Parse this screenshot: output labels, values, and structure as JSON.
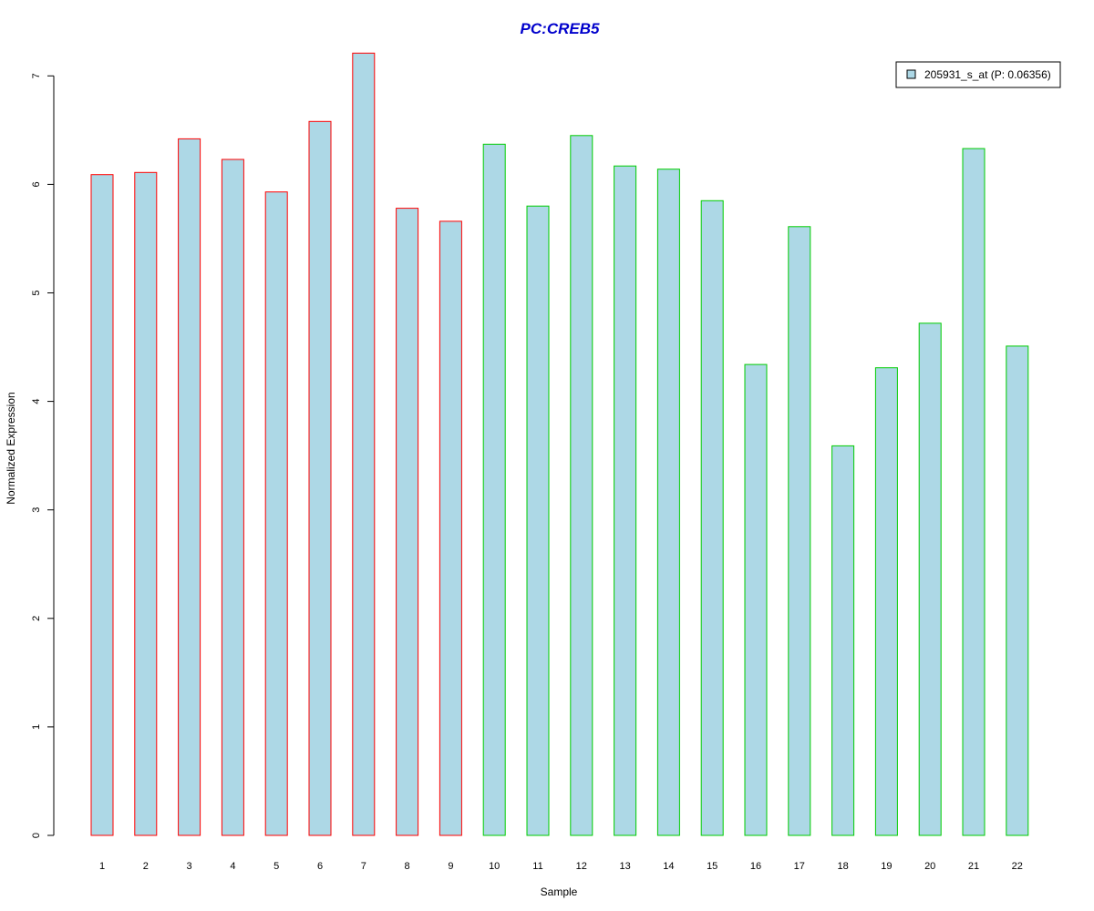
{
  "chart_data": {
    "type": "bar",
    "title": "PC:CREB5",
    "xlabel": "Sample",
    "ylabel": "Normalized Expression",
    "ylim": [
      0,
      7.2
    ],
    "yticks": [
      0,
      1,
      2,
      3,
      4,
      5,
      6,
      7
    ],
    "grid": false,
    "legend_position": "top-right",
    "categories": [
      "1",
      "2",
      "3",
      "4",
      "5",
      "6",
      "7",
      "8",
      "9",
      "10",
      "11",
      "12",
      "13",
      "14",
      "15",
      "16",
      "17",
      "18",
      "19",
      "20",
      "21",
      "22"
    ],
    "series": [
      {
        "name": "205931_s_at (P: 0.06356)",
        "values": [
          6.09,
          6.11,
          6.42,
          6.23,
          5.93,
          6.58,
          7.21,
          5.78,
          5.66,
          6.37,
          5.8,
          6.45,
          6.17,
          6.14,
          5.85,
          4.34,
          5.61,
          3.59,
          4.31,
          4.72,
          6.33,
          4.51
        ],
        "fill_color": "#add8e6"
      }
    ],
    "group_border_colors": [
      "#ff0000",
      "#ff0000",
      "#ff0000",
      "#ff0000",
      "#ff0000",
      "#ff0000",
      "#ff0000",
      "#ff0000",
      "#ff0000",
      "#00cc00",
      "#00cc00",
      "#00cc00",
      "#00cc00",
      "#00cc00",
      "#00cc00",
      "#00cc00",
      "#00cc00",
      "#00cc00",
      "#00cc00",
      "#00cc00",
      "#00cc00",
      "#00cc00"
    ],
    "title_color": "#0000cc"
  }
}
